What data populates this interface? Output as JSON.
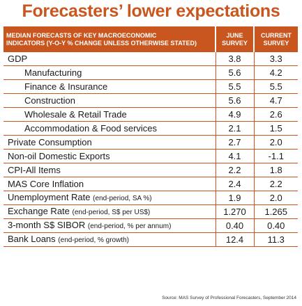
{
  "title": "Forecasters’ lower expectations",
  "chart_data": {
    "type": "table",
    "header": {
      "indicator_line1": "MEDIAN FORECASTS OF KEY MACROECONOMIC",
      "indicator_line2": "INDICATORS (y-o-y % change unless otherwise stated)",
      "col1_line1": "JUNE",
      "col1_line2": "SURVEY",
      "col2_line1": "CURRENT",
      "col2_line2": "SURVEY"
    },
    "rows": [
      {
        "label": "GDP",
        "unit": "",
        "june": "3.8",
        "current": "3.3",
        "indent": false
      },
      {
        "label": "Manufacturing",
        "unit": "",
        "june": "5.6",
        "current": "4.2",
        "indent": true
      },
      {
        "label": "Finance & Insurance",
        "unit": "",
        "june": "5.5",
        "current": "5.5",
        "indent": true
      },
      {
        "label": "Construction",
        "unit": "",
        "june": "5.6",
        "current": "4.7",
        "indent": true
      },
      {
        "label": "Wholesale & Retail Trade",
        "unit": "",
        "june": "4.9",
        "current": "2.6",
        "indent": true
      },
      {
        "label": "Accommodation & Food services",
        "unit": "",
        "june": "2.1",
        "current": "1.5",
        "indent": true
      },
      {
        "label": "Private Consumption",
        "unit": "",
        "june": "2.7",
        "current": "2.0",
        "indent": false
      },
      {
        "label": "Non-oil Domestic Exports",
        "unit": "",
        "june": "4.1",
        "current": "-1.1",
        "indent": false
      },
      {
        "label": "CPI-All Items",
        "unit": "",
        "june": "2.2",
        "current": "1.8",
        "indent": false
      },
      {
        "label": "MAS Core Inflation",
        "unit": "",
        "june": "2.4",
        "current": "2.2",
        "indent": false
      },
      {
        "label": "Unemployment Rate",
        "unit": "(end-period, SA %)",
        "june": "1.9",
        "current": "2.0",
        "indent": false
      },
      {
        "label": "Exchange Rate",
        "unit": "(end-period, S$ per US$)",
        "june": "1.270",
        "current": "1.265",
        "indent": false
      },
      {
        "label": "3-month S$ SIBOR",
        "unit": "(end-period, % per annum)",
        "june": "0.40",
        "current": "0.40",
        "indent": false
      },
      {
        "label": "Bank Loans",
        "unit": "(end-period, % growth)",
        "june": "12.4",
        "current": "11.3",
        "indent": false
      }
    ]
  },
  "source": "Source: MAS Survey of Professional Forecasters, September 2014",
  "colors": {
    "accent": "#c8561e",
    "header_text": "#ffffff",
    "body_text": "#1a1a1a"
  }
}
